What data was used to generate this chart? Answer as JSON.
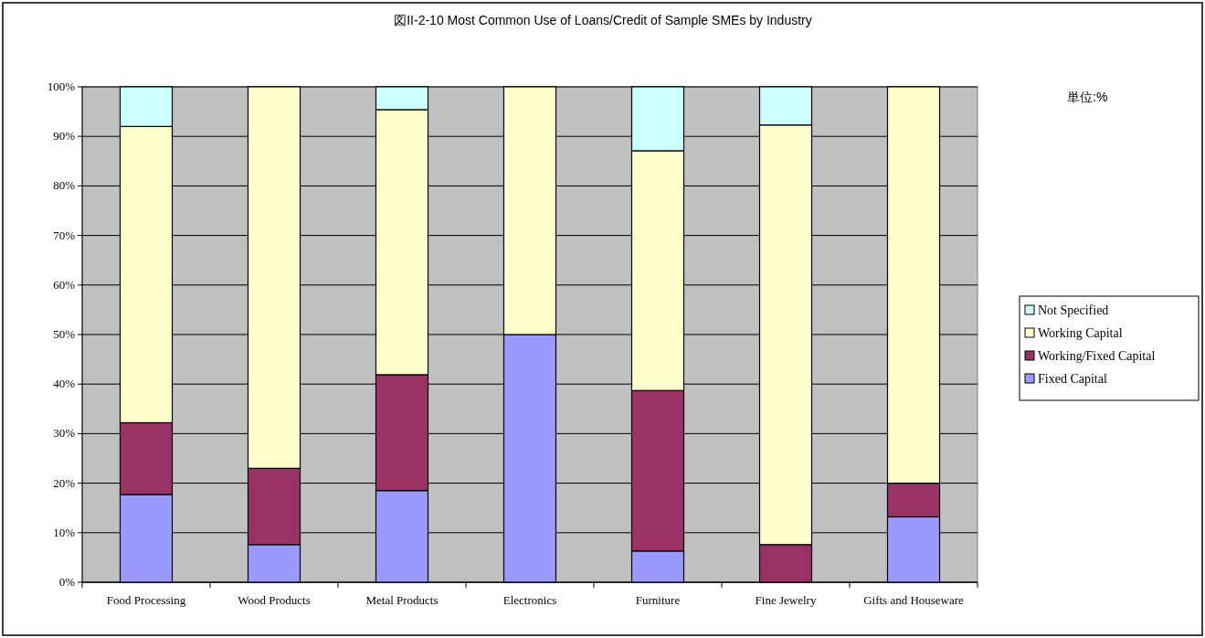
{
  "chart_data": {
    "type": "bar",
    "title": "図II-2-10 Most Common Use of Loans/Credit of Sample SMEs by Industry",
    "annotations": [
      "単位:%"
    ],
    "categories": [
      "Food Processing",
      "Wood Products",
      "Metal Products",
      "Electronics",
      "Furniture",
      "Fine Jewelry",
      "Gifts and Houseware"
    ],
    "stacked": true,
    "series": [
      {
        "name": "Fixed Capital",
        "color": "#9999ff",
        "values": [
          17.7,
          7.6,
          18.5,
          50.0,
          6.3,
          0,
          13.2
        ]
      },
      {
        "name": "Working/Fixed Capital",
        "color": "#993366",
        "values": [
          14.5,
          15.4,
          23.4,
          0,
          32.4,
          7.6,
          6.8
        ]
      },
      {
        "name": "Working Capital",
        "color": "#ffffcc",
        "values": [
          59.8,
          77.0,
          53.5,
          50.0,
          48.4,
          84.7,
          80.0
        ]
      },
      {
        "name": "Not Specified",
        "color": "#ccffff",
        "values": [
          8.0,
          0,
          4.6,
          0,
          12.9,
          7.7,
          0
        ]
      }
    ],
    "ylim": [
      0,
      100
    ],
    "yticks": [
      {
        "value": 0,
        "label": "0%"
      },
      {
        "value": 10,
        "label": "10%"
      },
      {
        "value": 20,
        "label": "20%"
      },
      {
        "value": 30,
        "label": "30%"
      },
      {
        "value": 40,
        "label": "40%"
      },
      {
        "value": 50,
        "label": "50%"
      },
      {
        "value": 60,
        "label": "60%"
      },
      {
        "value": 70,
        "label": "70%"
      },
      {
        "value": 80,
        "label": "80%"
      },
      {
        "value": 90,
        "label": "90%"
      },
      {
        "value": 100,
        "label": "100%"
      }
    ],
    "grid": "y",
    "legend": "right"
  }
}
